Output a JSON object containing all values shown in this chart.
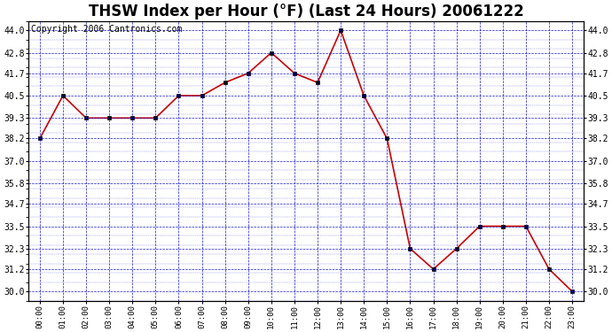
{
  "title": "THSW Index per Hour (°F) (Last 24 Hours) 20061222",
  "copyright": "Copyright 2006 Cantronics.com",
  "x_labels": [
    "00:00",
    "01:00",
    "02:00",
    "03:00",
    "04:00",
    "05:00",
    "06:00",
    "07:00",
    "08:00",
    "09:00",
    "10:00",
    "11:00",
    "12:00",
    "13:00",
    "14:00",
    "15:00",
    "16:00",
    "17:00",
    "18:00",
    "19:00",
    "20:00",
    "21:00",
    "22:00",
    "23:00"
  ],
  "y_values": [
    38.2,
    40.5,
    39.3,
    39.3,
    39.3,
    39.3,
    40.5,
    40.5,
    41.2,
    41.7,
    42.8,
    41.7,
    41.2,
    44.0,
    40.5,
    38.2,
    32.3,
    31.2,
    32.3,
    33.5,
    33.5,
    33.5,
    31.2,
    30.0
  ],
  "ylim_min": 29.5,
  "ylim_max": 44.5,
  "yticks": [
    30.0,
    31.2,
    32.3,
    33.5,
    34.7,
    35.8,
    37.0,
    38.2,
    39.3,
    40.5,
    41.7,
    42.8,
    44.0
  ],
  "line_color": "#cc0000",
  "marker_color": "#000000",
  "plot_bg": "#ffffff",
  "grid_color": "#0000cc",
  "title_fontsize": 12,
  "copyright_fontsize": 7
}
